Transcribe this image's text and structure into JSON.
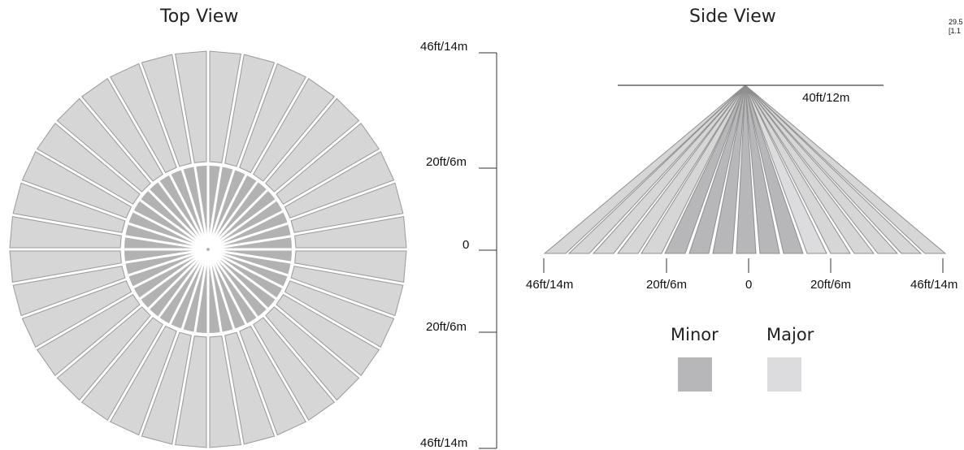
{
  "top_view": {
    "title": "Top View",
    "outer_zone_count": 36,
    "inner_zone_count": 40,
    "outer_color": "#d6d6d6",
    "inner_color": "#b2b2b2",
    "scale": {
      "labels": [
        "46ft/14m",
        "20ft/6m",
        "0",
        "20ft/6m",
        "46ft/14m"
      ]
    }
  },
  "side_view": {
    "title": "Side View",
    "ceiling_label": "40ft/12m",
    "axis_labels": [
      "46ft/14m",
      "20ft/6m",
      "0",
      "20ft/6m",
      "46ft/14m"
    ],
    "corner_note": [
      "29.5",
      "[1.1"
    ]
  },
  "legend": {
    "minor": {
      "label": "Minor",
      "color": "#b7b7b9"
    },
    "major": {
      "label": "Major",
      "color": "#dcdcde"
    }
  }
}
